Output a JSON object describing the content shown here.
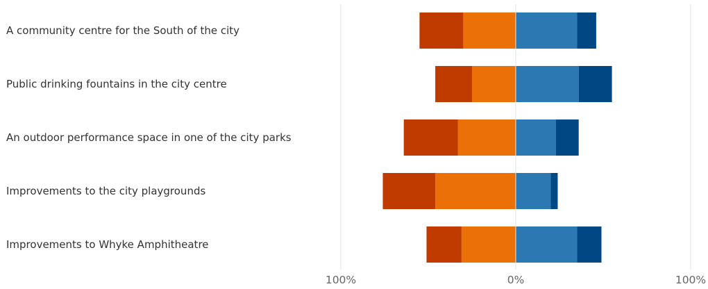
{
  "chart_data": {
    "type": "bar",
    "orientation": "horizontal",
    "stacking": "diverging",
    "categories": [
      "A community centre for the South of the city",
      "Public drinking fountains in the city centre",
      "An outdoor performance space in one of the city parks",
      "Improvements to the city playgrounds",
      "Improvements to Whyke Amphitheatre"
    ],
    "series": [
      {
        "side": "negative",
        "color": "#bf3b00",
        "values": [
          25,
          21,
          31,
          30,
          20
        ]
      },
      {
        "side": "negative",
        "color": "#ea7007",
        "values": [
          30,
          25,
          33,
          46,
          31
        ]
      },
      {
        "side": "positive",
        "color": "#2c78b2",
        "values": [
          35,
          36,
          23,
          20,
          35
        ]
      },
      {
        "side": "positive",
        "color": "#004884",
        "values": [
          11,
          19,
          13,
          4,
          14
        ]
      }
    ],
    "xlim": [
      -100,
      100
    ],
    "tick_labels": [
      "100%",
      "0%",
      "100%"
    ],
    "grid": true,
    "legend": "none"
  }
}
